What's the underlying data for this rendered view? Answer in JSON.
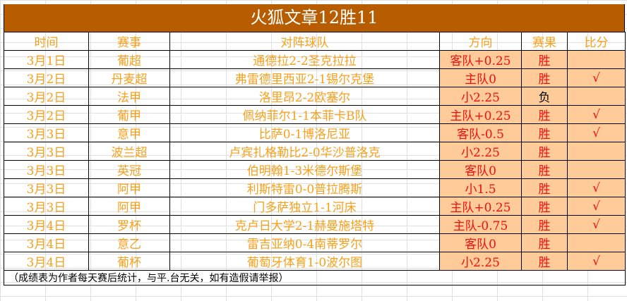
{
  "title": "火狐文章12胜11",
  "headers": [
    "时间",
    "赛事",
    "对阵球队",
    "方向",
    "赛果",
    "比分"
  ],
  "rows": [
    {
      "date": "3月1日",
      "league": "葡超",
      "match": "通德拉2-2圣克拉拉",
      "pick": "客队+0.25",
      "result": "胜",
      "score": ""
    },
    {
      "date": "3月2日",
      "league": "丹麦超",
      "match": "弗雷德里西亚2-1锡尔克堡",
      "pick": "主队0",
      "result": "胜",
      "score": "√"
    },
    {
      "date": "3月2日",
      "league": "法甲",
      "match": "洛里昂2-2欧塞尔",
      "pick": "小2.25",
      "result": "负",
      "score": ""
    },
    {
      "date": "3月2日",
      "league": "葡甲",
      "match": "佩纳菲尔1-1本菲卡B队",
      "pick": "主队+0.25",
      "result": "胜",
      "score": "√"
    },
    {
      "date": "3月3日",
      "league": "意甲",
      "match": "比萨0-1博洛尼亚",
      "pick": "客队-0.5",
      "result": "胜",
      "score": "√"
    },
    {
      "date": "3月3日",
      "league": "波兰超",
      "match": "卢宾扎格勒比2-0华沙普洛克",
      "pick": "小2.25",
      "result": "胜",
      "score": ""
    },
    {
      "date": "3月3日",
      "league": "英冠",
      "match": "伯明翰1-3米德尔斯堡",
      "pick": "客队0",
      "result": "胜",
      "score": ""
    },
    {
      "date": "3月3日",
      "league": "阿甲",
      "match": "利斯特雷0-0普拉腾斯",
      "pick": "小1.5",
      "result": "胜",
      "score": "√"
    },
    {
      "date": "3月3日",
      "league": "阿甲",
      "match": "门多萨独立1-1河床",
      "pick": "主队+0.25",
      "result": "胜",
      "score": "√"
    },
    {
      "date": "3月4日",
      "league": "罗杯",
      "match": "克卢日大学2-1赫曼施塔特",
      "pick": "主队-0.75",
      "result": "胜",
      "score": "√"
    },
    {
      "date": "3月4日",
      "league": "意乙",
      "match": "雷吉亚纳0-4南蒂罗尔",
      "pick": "客队0",
      "result": "胜",
      "score": ""
    },
    {
      "date": "3月4日",
      "league": "葡杯",
      "match": "葡萄牙体育1-0波尔图",
      "pick": "小2.25",
      "result": "胜",
      "score": "√"
    }
  ],
  "footer": "（成绩表为作者每天赛后统计，与平.台无关，如有造假请举报）"
}
